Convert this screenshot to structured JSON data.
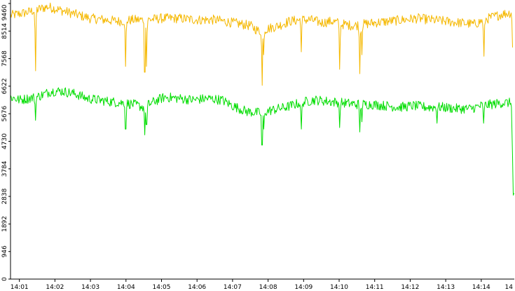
{
  "chart_data": {
    "type": "line",
    "title": "",
    "xlabel": "",
    "ylabel": "",
    "ylim": [
      0,
      9460
    ],
    "grid": false,
    "legend": "none",
    "y_ticks": [
      0,
      946,
      1892,
      2838,
      3784,
      4730,
      5676,
      6622,
      7568,
      8514,
      9460
    ],
    "x_ticks": [
      "14:01",
      "14:02",
      "14:03",
      "14:04",
      "14:05",
      "14:06",
      "14:07",
      "14:08",
      "14:09",
      "14:10",
      "14:11",
      "14:12",
      "14:13",
      "14:14",
      "14"
    ],
    "x_range_minutes": [
      0.75,
      14.93
    ],
    "series": [
      {
        "color": "#f5b800",
        "base": [
          [
            0.75,
            9050
          ],
          [
            1.2,
            9150
          ],
          [
            1.5,
            9250
          ],
          [
            1.8,
            9350
          ],
          [
            2.1,
            9250
          ],
          [
            2.4,
            9150
          ],
          [
            2.7,
            9050
          ],
          [
            3.0,
            8950
          ],
          [
            3.4,
            8900
          ],
          [
            3.8,
            8850
          ],
          [
            4.2,
            8900
          ],
          [
            4.6,
            8900
          ],
          [
            5.0,
            8950
          ],
          [
            5.5,
            8950
          ],
          [
            6.0,
            8900
          ],
          [
            6.5,
            8900
          ],
          [
            7.0,
            8800
          ],
          [
            7.5,
            8700
          ],
          [
            7.75,
            8500
          ],
          [
            8.0,
            8600
          ],
          [
            8.3,
            8700
          ],
          [
            8.6,
            8850
          ],
          [
            8.9,
            8900
          ],
          [
            9.2,
            8900
          ],
          [
            9.5,
            8800
          ],
          [
            9.8,
            8850
          ],
          [
            10.1,
            8750
          ],
          [
            10.4,
            8700
          ],
          [
            10.7,
            8750
          ],
          [
            11.0,
            8800
          ],
          [
            11.4,
            8850
          ],
          [
            11.8,
            8900
          ],
          [
            12.2,
            8950
          ],
          [
            12.6,
            8900
          ],
          [
            13.0,
            8850
          ],
          [
            13.4,
            8800
          ],
          [
            13.8,
            8750
          ],
          [
            14.2,
            8950
          ],
          [
            14.6,
            9100
          ],
          [
            14.88,
            9150
          ]
        ],
        "dips": [
          [
            1.45,
            7150
          ],
          [
            3.99,
            7300
          ],
          [
            4.53,
            7100
          ],
          [
            4.58,
            7300
          ],
          [
            7.83,
            6650
          ],
          [
            7.88,
            7700
          ],
          [
            8.93,
            7800
          ],
          [
            10.02,
            7200
          ],
          [
            10.58,
            7050
          ],
          [
            10.64,
            7700
          ],
          [
            14.07,
            7650
          ],
          [
            14.88,
            7950
          ]
        ]
      },
      {
        "color": "#00dd00",
        "base": [
          [
            0.75,
            6250
          ],
          [
            1.0,
            6150
          ],
          [
            1.5,
            6250
          ],
          [
            1.9,
            6450
          ],
          [
            2.2,
            6450
          ],
          [
            2.6,
            6350
          ],
          [
            2.9,
            6200
          ],
          [
            3.2,
            6150
          ],
          [
            3.5,
            6100
          ],
          [
            3.9,
            6050
          ],
          [
            4.2,
            6000
          ],
          [
            4.5,
            5900
          ],
          [
            4.8,
            6100
          ],
          [
            5.1,
            6250
          ],
          [
            5.5,
            6200
          ],
          [
            5.9,
            6150
          ],
          [
            6.3,
            6200
          ],
          [
            6.7,
            6150
          ],
          [
            7.0,
            5950
          ],
          [
            7.4,
            5750
          ],
          [
            7.8,
            5700
          ],
          [
            8.1,
            5800
          ],
          [
            8.5,
            5900
          ],
          [
            8.9,
            6050
          ],
          [
            9.3,
            6150
          ],
          [
            9.7,
            6100
          ],
          [
            10.1,
            6050
          ],
          [
            10.5,
            6000
          ],
          [
            10.9,
            6000
          ],
          [
            11.3,
            5950
          ],
          [
            11.7,
            5900
          ],
          [
            12.1,
            5950
          ],
          [
            12.5,
            5900
          ],
          [
            12.9,
            5900
          ],
          [
            13.3,
            5850
          ],
          [
            13.7,
            5850
          ],
          [
            14.0,
            5950
          ],
          [
            14.3,
            6000
          ],
          [
            14.6,
            6050
          ],
          [
            14.85,
            6050
          ]
        ],
        "dips": [
          [
            1.45,
            5450
          ],
          [
            3.99,
            5150
          ],
          [
            4.53,
            4950
          ],
          [
            4.58,
            5300
          ],
          [
            7.83,
            4600
          ],
          [
            7.88,
            5150
          ],
          [
            8.93,
            5150
          ],
          [
            10.02,
            5200
          ],
          [
            10.58,
            5050
          ],
          [
            10.64,
            5400
          ],
          [
            12.75,
            5350
          ],
          [
            14.07,
            5350
          ]
        ],
        "final_drop": [
          [
            14.88,
            4200
          ],
          [
            14.9,
            2880
          ],
          [
            14.92,
            2950
          ]
        ]
      }
    ]
  }
}
